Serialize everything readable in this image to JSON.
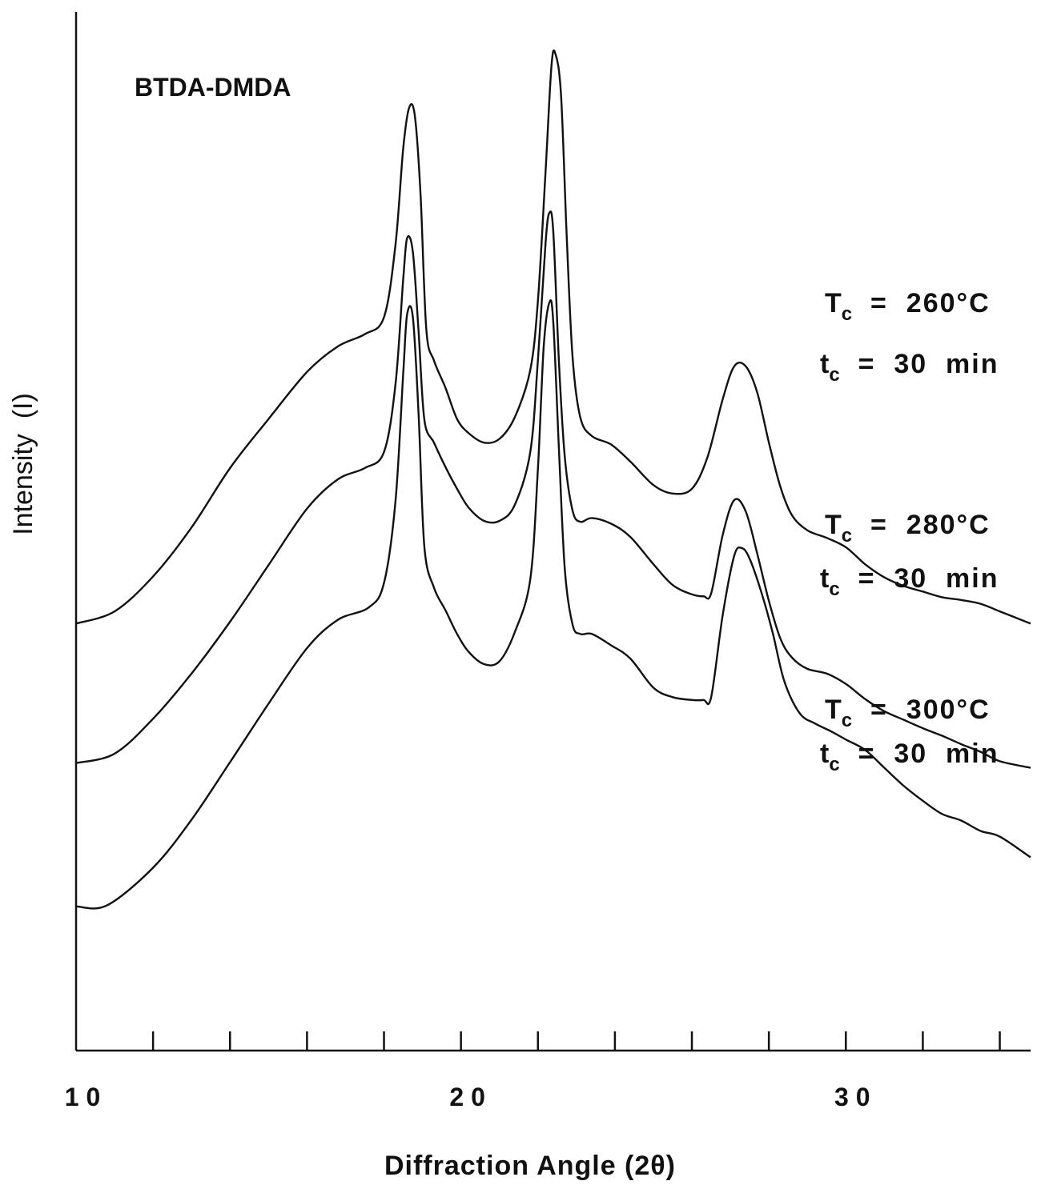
{
  "chart_data": {
    "type": "line",
    "title": "BTDA-DMDA",
    "xlabel": "Diffraction  Angle  (2θ)",
    "ylabel": "Intensity  (I)",
    "xlim": [
      10,
      34.8
    ],
    "ylim": [
      0,
      100
    ],
    "x_ticks": [
      10,
      12,
      14,
      16,
      18,
      20,
      22,
      24,
      26,
      28,
      30,
      32,
      34
    ],
    "x_tick_labels": [
      {
        "x": 10,
        "label": "1 0"
      },
      {
        "x": 20,
        "label": "2 0"
      },
      {
        "x": 30,
        "label": "3 0"
      }
    ],
    "y_ticks_visible": false,
    "series": [
      {
        "name": "Tc = 260°C, tc = 30 min",
        "label_lines": [
          {
            "main": "T",
            "sub": "c",
            "rest": " = 260°C"
          },
          {
            "main": "t",
            "sub": "c",
            "rest": " = 30 min"
          }
        ],
        "x": [
          10.0,
          11.0,
          12.0,
          13.0,
          14.0,
          15.0,
          16.0,
          16.8,
          17.5,
          18.0,
          18.3,
          18.5,
          18.65,
          18.8,
          18.95,
          19.1,
          19.3,
          19.6,
          19.9,
          20.2,
          20.6,
          21.0,
          21.4,
          21.8,
          22.0,
          22.2,
          22.35,
          22.45,
          22.6,
          22.75,
          22.9,
          23.1,
          23.4,
          23.9,
          24.4,
          25.0,
          25.5,
          26.0,
          26.4,
          26.8,
          27.1,
          27.4,
          27.7,
          28.0,
          28.3,
          28.6,
          29.0,
          29.5,
          30.0,
          30.5,
          31.0,
          31.5,
          32.0,
          32.5,
          33.0,
          33.5,
          34.0,
          34.8
        ],
        "y": [
          45.3,
          46.6,
          50.3,
          55.5,
          61.8,
          67.0,
          72.0,
          74.7,
          76.0,
          77.8,
          85.5,
          95.7,
          100.0,
          99.2,
          90.8,
          76.5,
          73.2,
          70.3,
          67.0,
          65.5,
          64.5,
          64.9,
          67.2,
          72.2,
          79.6,
          93.4,
          104.4,
          105.8,
          101.4,
          86.2,
          73.6,
          67.2,
          65.2,
          64.3,
          62.5,
          60.0,
          59.1,
          59.6,
          62.9,
          69.1,
          72.6,
          72.6,
          69.8,
          64.5,
          59.8,
          56.8,
          55.2,
          54.4,
          53.4,
          51.6,
          50.2,
          49.3,
          48.7,
          48.1,
          47.8,
          47.4,
          46.6,
          45.3
        ]
      },
      {
        "name": "Tc = 280°C, tc = 30 min",
        "label_lines": [
          {
            "main": "T",
            "sub": "c",
            "rest": " = 280°C"
          },
          {
            "main": "t",
            "sub": "c",
            "rest": " = 30 min"
          }
        ],
        "x": [
          10.0,
          11.0,
          12.0,
          13.0,
          14.0,
          15.0,
          16.0,
          16.8,
          17.5,
          18.0,
          18.3,
          18.5,
          18.6,
          18.75,
          18.9,
          19.05,
          19.3,
          19.6,
          19.9,
          20.2,
          20.6,
          21.0,
          21.4,
          21.8,
          22.0,
          22.2,
          22.3,
          22.4,
          22.55,
          22.7,
          22.9,
          23.1,
          23.4,
          23.9,
          24.4,
          25.0,
          25.5,
          26.0,
          26.3,
          26.5,
          26.8,
          27.1,
          27.4,
          27.7,
          28.0,
          28.3,
          28.6,
          29.0,
          29.5,
          30.0,
          30.5,
          31.0,
          31.5,
          32.0,
          32.5,
          33.0,
          33.5,
          34.0,
          34.8
        ],
        "y": [
          30.5,
          31.5,
          35.2,
          40.0,
          45.5,
          51.5,
          57.5,
          60.6,
          61.8,
          63.5,
          70.7,
          81.8,
          86.2,
          84.7,
          76.2,
          66.9,
          64.5,
          61.9,
          59.6,
          57.6,
          56.2,
          56.2,
          57.9,
          63.5,
          73.3,
          85.8,
          88.9,
          86.8,
          72.7,
          62.9,
          57.3,
          56.1,
          56.5,
          55.9,
          54.5,
          51.6,
          49.4,
          48.4,
          48.2,
          48.5,
          54.7,
          58.4,
          57.2,
          52.7,
          47.7,
          43.7,
          41.7,
          40.5,
          40.0,
          38.9,
          37.3,
          36.0,
          35.1,
          34.2,
          33.4,
          32.5,
          31.7,
          30.7,
          30.0
        ]
      },
      {
        "name": "Tc = 300°C, tc = 30 min",
        "label_lines": [
          {
            "main": "T",
            "sub": "c",
            "rest": " = 300°C"
          },
          {
            "main": "t",
            "sub": "c",
            "rest": " = 30 min"
          }
        ],
        "x": [
          10.0,
          10.8,
          12.0,
          13.0,
          14.0,
          15.0,
          16.0,
          16.8,
          17.6,
          18.0,
          18.3,
          18.5,
          18.6,
          18.75,
          18.9,
          19.05,
          19.3,
          19.6,
          19.9,
          20.2,
          20.6,
          21.0,
          21.4,
          21.8,
          22.0,
          22.15,
          22.3,
          22.4,
          22.55,
          22.7,
          22.9,
          23.1,
          23.4,
          23.9,
          24.4,
          25.0,
          25.5,
          26.0,
          26.3,
          26.5,
          26.8,
          27.1,
          27.3,
          27.5,
          27.8,
          28.1,
          28.4,
          28.8,
          29.2,
          29.6,
          30.0,
          30.5,
          31.0,
          31.5,
          32.0,
          32.5,
          33.0,
          33.5,
          34.0,
          34.8
        ],
        "y": [
          15.3,
          15.4,
          19.4,
          24.5,
          30.6,
          36.8,
          42.7,
          45.7,
          47.0,
          49.6,
          58.3,
          71.8,
          78.1,
          77.8,
          67.4,
          53.4,
          49.1,
          46.7,
          44.2,
          42.3,
          41.0,
          41.3,
          44.4,
          50.0,
          61.8,
          74.7,
          79.4,
          77.2,
          63.4,
          51.0,
          45.2,
          44.2,
          44.2,
          43.0,
          41.6,
          38.5,
          37.5,
          37.2,
          37.2,
          37.5,
          46.2,
          52.5,
          53.3,
          52.2,
          48.7,
          44.3,
          39.2,
          35.8,
          34.7,
          33.9,
          33.0,
          31.9,
          30.0,
          28.1,
          26.5,
          25.1,
          24.4,
          23.3,
          22.7,
          20.5
        ]
      }
    ]
  }
}
